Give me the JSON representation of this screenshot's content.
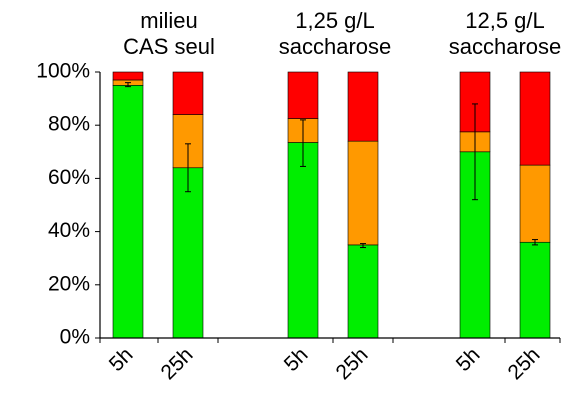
{
  "chart_data": {
    "type": "bar",
    "stacked": true,
    "groups": [
      {
        "label_lines": [
          "milieu",
          "CAS seul"
        ],
        "categories": [
          "5h",
          "25h"
        ]
      },
      {
        "label_lines": [
          "1,25 g/L",
          "saccharose"
        ],
        "categories": [
          "5h",
          "25h"
        ]
      },
      {
        "label_lines": [
          "12,5 g/L",
          "saccharose"
        ],
        "categories": [
          "5h",
          "25h"
        ]
      }
    ],
    "categories": [
      "5h",
      "25h",
      "5h",
      "25h",
      "5h",
      "25h"
    ],
    "series": [
      {
        "color": "#00ee00",
        "values": [
          95,
          64,
          73.5,
          35,
          70,
          36
        ]
      },
      {
        "color": "#ff9900",
        "values": [
          2,
          20,
          9,
          39,
          7.5,
          29
        ]
      },
      {
        "color": "#ff0000",
        "values": [
          3,
          16,
          17.5,
          26,
          22.5,
          35
        ]
      }
    ],
    "error_bars": [
      {
        "series_index": 0,
        "category_index": 0,
        "low": 94.5,
        "high": 96
      },
      {
        "series_index": 0,
        "category_index": 1,
        "low": 55,
        "high": 73
      },
      {
        "series_index": 0,
        "category_index": 2,
        "low": 64.5,
        "high": 82
      },
      {
        "series_index": 0,
        "category_index": 3,
        "low": 34,
        "high": 35.5
      },
      {
        "series_index": 0,
        "category_index": 4,
        "low": 52,
        "high": 88
      },
      {
        "series_index": 0,
        "category_index": 5,
        "low": 35,
        "high": 37
      }
    ],
    "y_ticks": [
      "0%",
      "20%",
      "40%",
      "60%",
      "80%",
      "100%"
    ],
    "ylim": [
      0,
      100
    ],
    "grid": false,
    "legend": "none"
  }
}
